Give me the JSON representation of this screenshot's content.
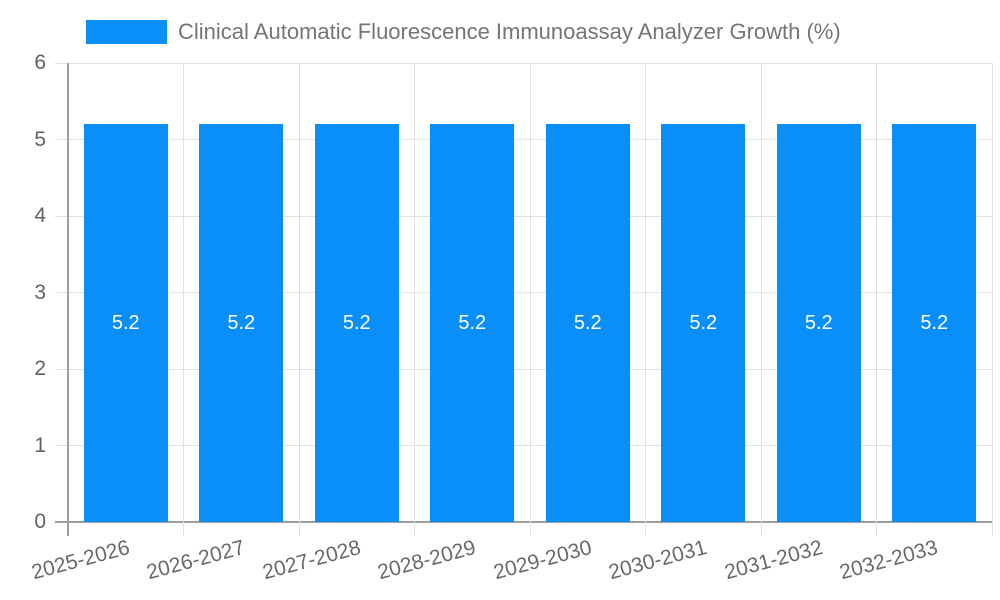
{
  "chart_data": {
    "type": "bar",
    "title": "Clinical Automatic Fluorescence Immunoassay Analyzer Growth (%)",
    "categories": [
      "2025-2026",
      "2026-2027",
      "2027-2028",
      "2028-2029",
      "2029-2030",
      "2030-2031",
      "2031-2032",
      "2032-2033"
    ],
    "values": [
      5.2,
      5.2,
      5.2,
      5.2,
      5.2,
      5.2,
      5.2,
      5.2
    ],
    "series": [
      {
        "name": "Clinical Automatic Fluorescence Immunoassay Analyzer Growth (%)",
        "values": [
          5.2,
          5.2,
          5.2,
          5.2,
          5.2,
          5.2,
          5.2,
          5.2
        ]
      }
    ],
    "bar_labels": [
      "5.2",
      "5.2",
      "5.2",
      "5.2",
      "5.2",
      "5.2",
      "5.2",
      "5.2"
    ],
    "xlabel": "",
    "ylabel": "",
    "ylim": [
      0,
      6
    ],
    "y_ticks": [
      0,
      1,
      2,
      3,
      4,
      5,
      6
    ],
    "grid": true,
    "legend_position": "top",
    "x_label_rotation_deg": -15
  },
  "legend": {
    "label": "Clinical Automatic Fluorescence Immunoassay Analyzer Growth (%)"
  },
  "colors": {
    "bar": "#0a8ff8",
    "bar_label": "#ffffff",
    "grid_line": "#e0e0e0",
    "axis_line": "#9e9e9e",
    "y_label": "#616161",
    "x_label": "#696969",
    "title": "#757575",
    "background": "#ffffff"
  }
}
